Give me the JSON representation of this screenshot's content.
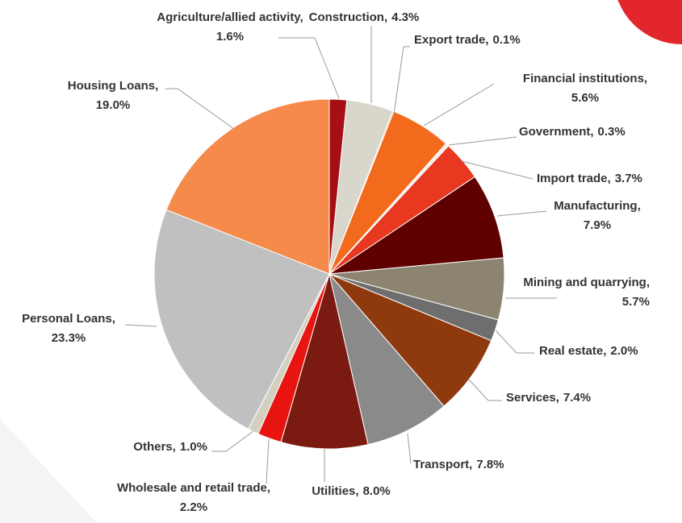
{
  "chart_data": {
    "type": "pie",
    "categories": [
      "Agriculture/allied activity,",
      "Construction,",
      "Export trade,",
      "Financial institutions,",
      "Government,",
      "Import trade,",
      "Manufacturing,",
      "Mining and quarrying,",
      "Real estate,",
      "Services,",
      "Transport,",
      "Utilities,",
      "Wholesale and retail trade,",
      "Others,",
      "Personal Loans,",
      "Housing Loans,"
    ],
    "values": [
      1.6,
      4.3,
      0.1,
      5.6,
      0.3,
      3.7,
      7.9,
      5.7,
      2.0,
      7.4,
      7.8,
      8.0,
      2.2,
      1.0,
      23.3,
      19.0
    ],
    "value_labels": [
      "1.6%",
      "4.3%",
      "0.1%",
      "5.6%",
      "0.3%",
      "3.7%",
      "7.9%",
      "5.7%",
      "2.0%",
      "7.4%",
      "7.8%",
      "8.0%",
      "2.2%",
      "1.0%",
      "23.3%",
      "19.0%"
    ],
    "colors": [
      "#a50f15",
      "#d9d6cc",
      "#f06010",
      "#f26a1b",
      "#f0f0f0",
      "#e8381f",
      "#5e0000",
      "#8c8470",
      "#6e6e6e",
      "#8f3a0e",
      "#8a8a8a",
      "#7b1a10",
      "#e8140f",
      "#d4d0c0",
      "#c0c0c0",
      "#f58a4a"
    ]
  }
}
